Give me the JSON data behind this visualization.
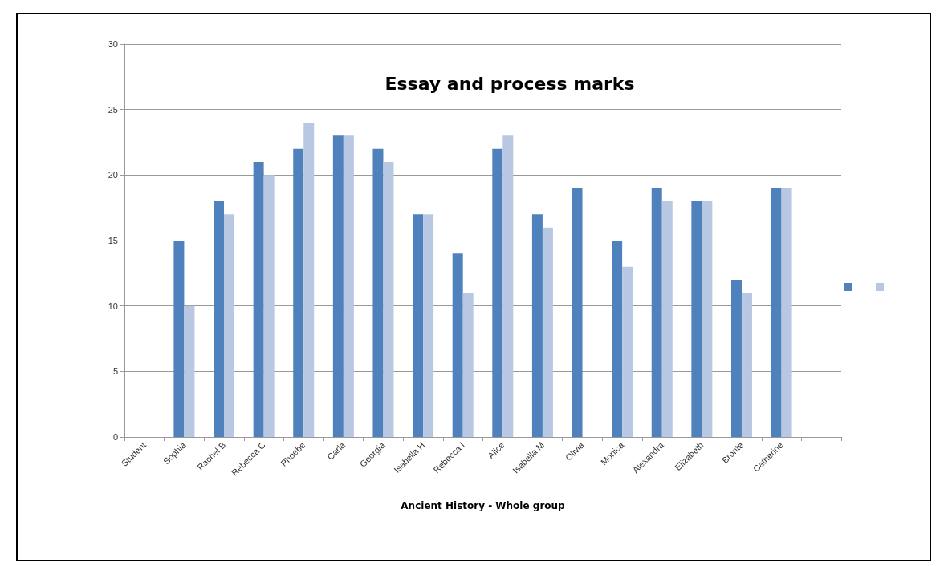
{
  "chart_data": {
    "type": "bar",
    "title": "Essay and process marks",
    "xlabel": "Ancient History - Whole group",
    "categories": [
      "Student",
      "Sophia",
      "Rachel B",
      "Rebecca C",
      "Phoebe",
      "Carla",
      "Georgia",
      "Isabella H",
      "Rebecca I",
      "Alice",
      "Isabella M",
      "Olivia",
      "Monica",
      "Alexandra",
      "Elizabeth",
      "Bronte",
      "Catherine",
      null
    ],
    "series": [
      {
        "color": "#4f81bd",
        "values": [
          null,
          15,
          18,
          21,
          22,
          23,
          22,
          17,
          14,
          22,
          17,
          19,
          15,
          19,
          18,
          12,
          19,
          null
        ]
      },
      {
        "color": "#b9c8e2",
        "values": [
          null,
          10,
          17,
          20,
          24,
          23,
          21,
          17,
          11,
          23,
          16,
          null,
          13,
          18,
          18,
          11,
          19,
          null
        ]
      }
    ],
    "ylim": [
      0,
      30
    ],
    "yticks": [
      0,
      5,
      10,
      15,
      20,
      25,
      30
    ],
    "grid": "y"
  }
}
